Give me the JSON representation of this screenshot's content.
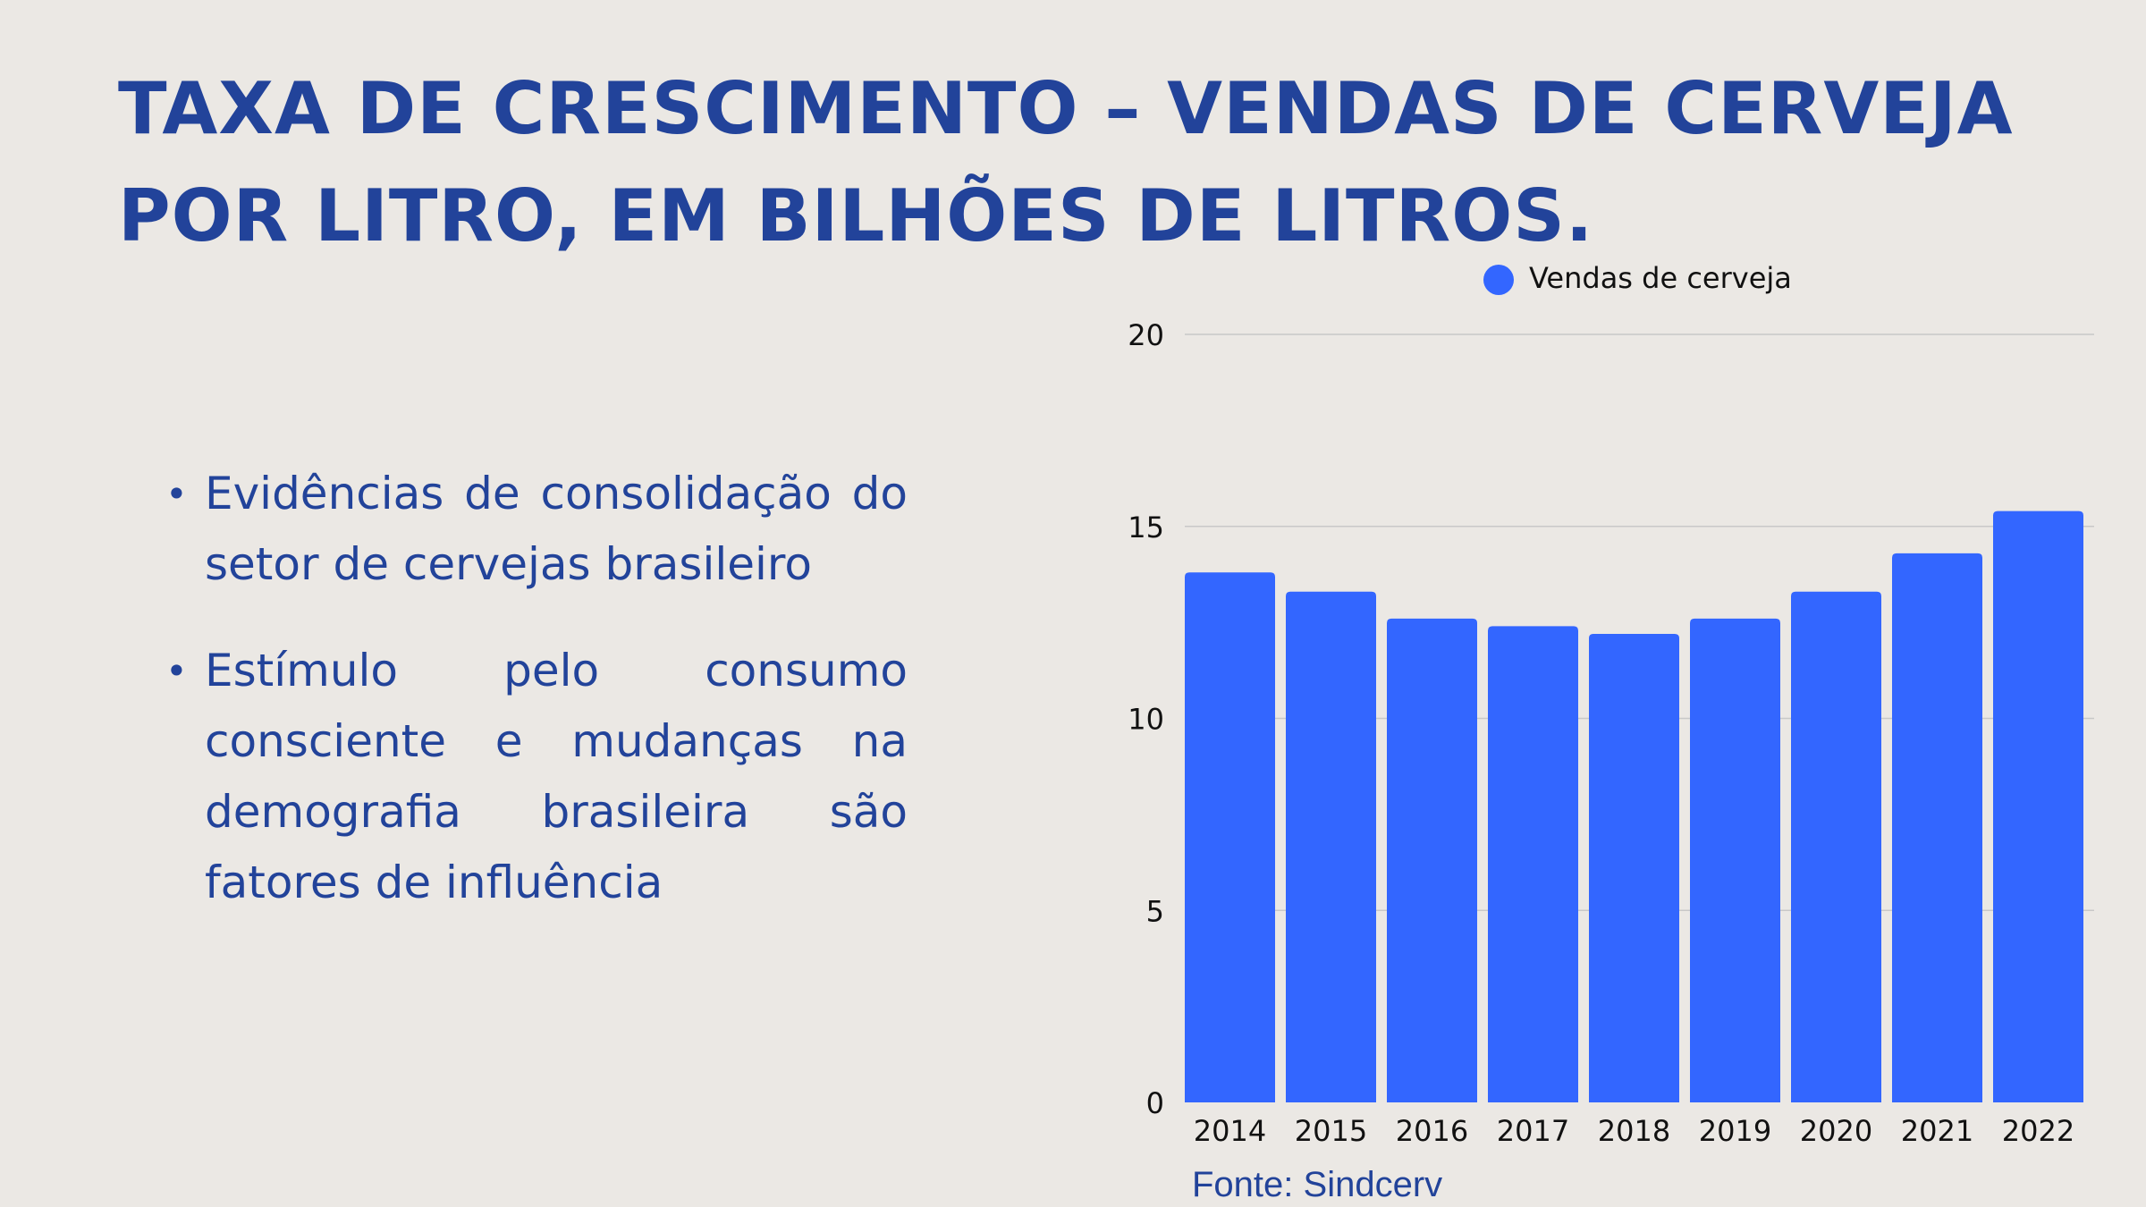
{
  "title_lines": [
    "TAXA DE CRESCIMENTO – VENDAS DE CERVEJA",
    "POR LITRO, EM BILHÕES DE LITROS."
  ],
  "bullets": [
    "Evidências de consolidação do setor de cervejas brasileiro",
    "Estímulo pelo consumo consciente e mudanças na demografia brasileira são fatores de influência"
  ],
  "source": "Fonte: Sindcerv",
  "colors": {
    "bar": "#3366ff",
    "text": "#22439a",
    "background": "#ebe8e4",
    "grid": "#c8c8c8"
  },
  "chart_data": {
    "type": "bar",
    "categories": [
      "2014",
      "2015",
      "2016",
      "2017",
      "2018",
      "2019",
      "2020",
      "2021",
      "2022"
    ],
    "series": [
      {
        "name": "Vendas de cerveja",
        "values": [
          13.8,
          13.3,
          12.6,
          12.4,
          12.2,
          12.6,
          13.3,
          14.3,
          15.4
        ]
      }
    ],
    "ylim": [
      0,
      20
    ],
    "yticks": [
      0,
      5,
      10,
      15,
      20
    ],
    "grid": true,
    "legend": "top"
  }
}
